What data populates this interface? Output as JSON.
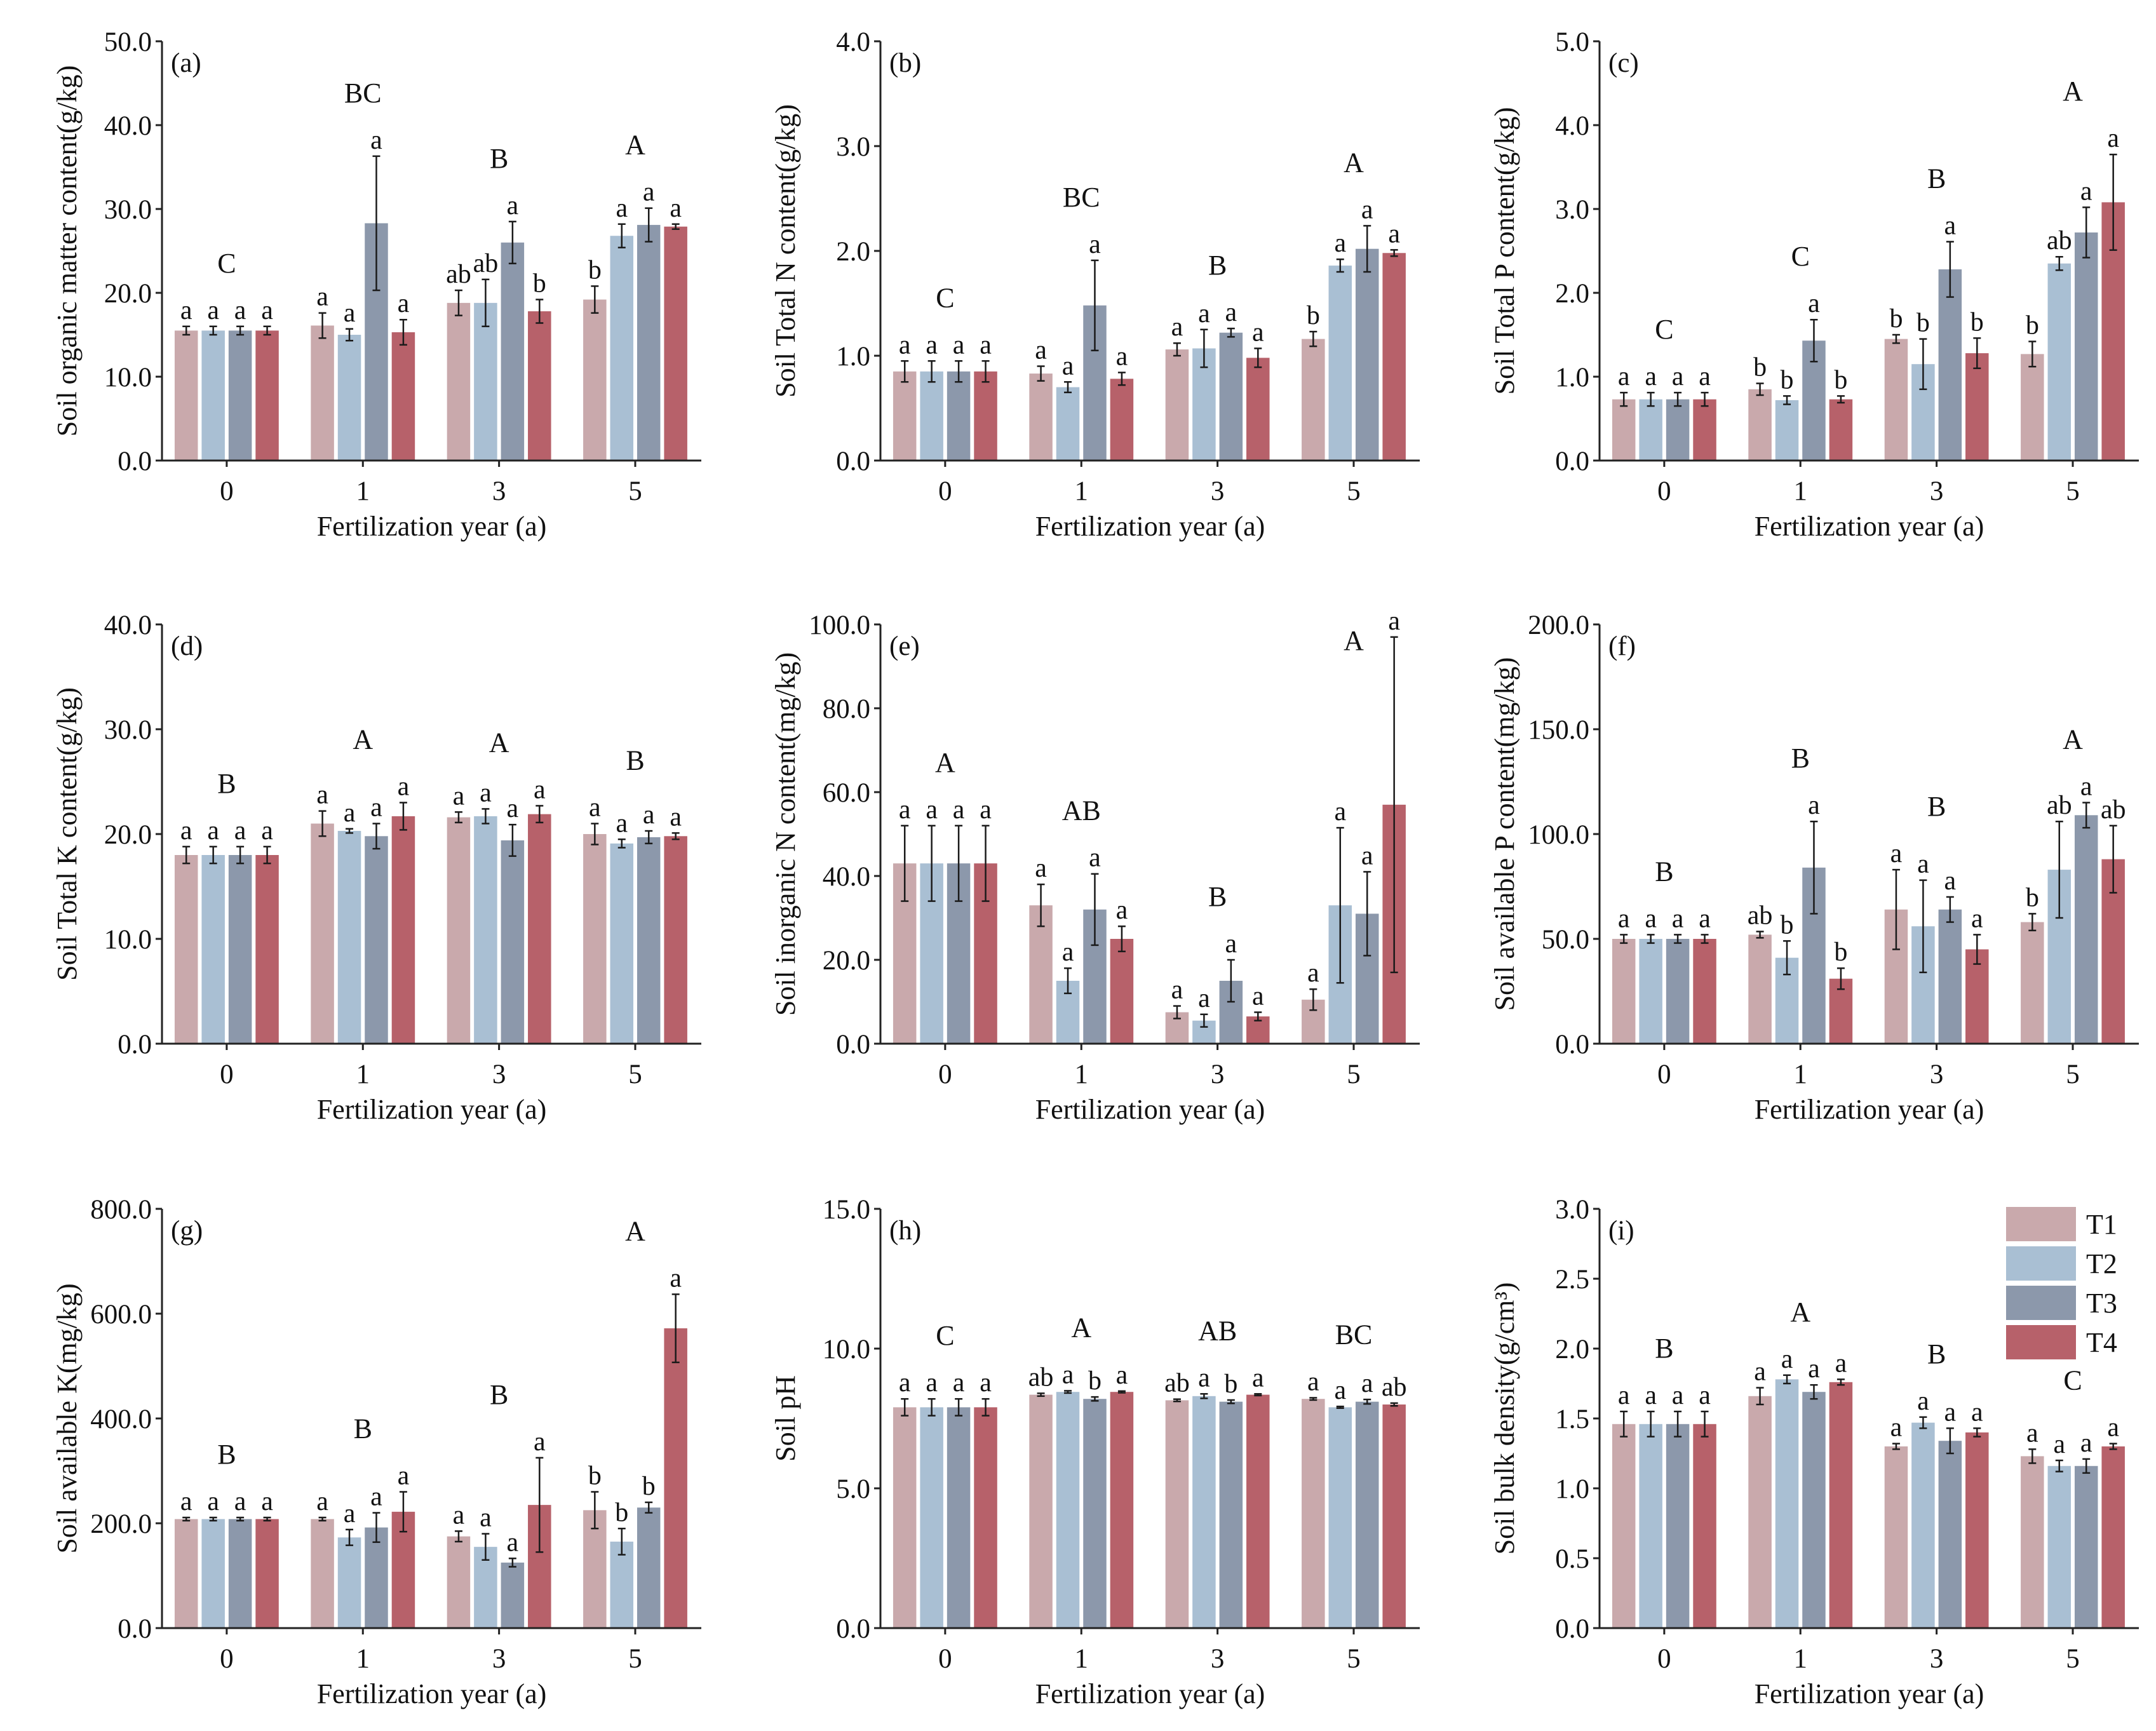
{
  "colors": {
    "T1": "#c9a9ac",
    "T2": "#a9bfd3",
    "T3": "#8c98ab",
    "T4": "#b7616a",
    "axis": "#222222",
    "error": "#1a1a1a"
  },
  "chart_data": [
    {
      "type": "bar",
      "panel": "(a)",
      "ylabel": "Soil organic matter content(g/kg)",
      "xlabel": "Fertilization year (a)",
      "ylim": [
        0,
        50
      ],
      "yticks": [
        "0.0",
        "10.0",
        "20.0",
        "30.0",
        "40.0",
        "50.0"
      ],
      "ystep": 10,
      "categories": [
        "0",
        "1",
        "3",
        "5"
      ],
      "group_letters": [
        "C",
        "BC",
        "B",
        "A"
      ],
      "series": [
        {
          "name": "T1",
          "values": [
            15.5,
            16.1,
            18.8,
            19.2
          ],
          "errors": [
            0.5,
            1.5,
            1.5,
            1.6
          ],
          "letters": [
            "a",
            "a",
            "ab",
            "b"
          ]
        },
        {
          "name": "T2",
          "values": [
            15.5,
            15.0,
            18.8,
            26.8
          ],
          "errors": [
            0.5,
            0.7,
            2.8,
            1.4
          ],
          "letters": [
            "a",
            "a",
            "ab",
            "a"
          ]
        },
        {
          "name": "T3",
          "values": [
            15.5,
            28.3,
            26.0,
            28.1
          ],
          "errors": [
            0.5,
            8.0,
            2.5,
            2.0
          ],
          "letters": [
            "a",
            "a",
            "a",
            "a"
          ]
        },
        {
          "name": "T4",
          "values": [
            15.5,
            15.3,
            17.8,
            27.9
          ],
          "errors": [
            0.5,
            1.5,
            1.4,
            0.3
          ],
          "letters": [
            "a",
            "a",
            "b",
            "a"
          ]
        }
      ]
    },
    {
      "type": "bar",
      "panel": "(b)",
      "ylabel": "Soil Total N content(g/kg)",
      "xlabel": "Fertilization year (a)",
      "ylim": [
        0,
        4
      ],
      "yticks": [
        "0.0",
        "1.0",
        "2.0",
        "3.0",
        "4.0"
      ],
      "ystep": 1,
      "categories": [
        "0",
        "1",
        "3",
        "5"
      ],
      "group_letters": [
        "C",
        "BC",
        "B",
        "A"
      ],
      "series": [
        {
          "name": "T1",
          "values": [
            0.85,
            0.83,
            1.06,
            1.16
          ],
          "errors": [
            0.1,
            0.07,
            0.06,
            0.07
          ],
          "letters": [
            "a",
            "a",
            "a",
            "b"
          ]
        },
        {
          "name": "T2",
          "values": [
            0.85,
            0.7,
            1.07,
            1.86
          ],
          "errors": [
            0.1,
            0.05,
            0.18,
            0.06
          ],
          "letters": [
            "a",
            "a",
            "a",
            "a"
          ]
        },
        {
          "name": "T3",
          "values": [
            0.85,
            1.48,
            1.22,
            2.02
          ],
          "errors": [
            0.1,
            0.43,
            0.04,
            0.22
          ],
          "letters": [
            "a",
            "a",
            "a",
            "a"
          ]
        },
        {
          "name": "T4",
          "values": [
            0.85,
            0.78,
            0.98,
            1.98
          ],
          "errors": [
            0.1,
            0.06,
            0.09,
            0.03
          ],
          "letters": [
            "a",
            "a",
            "a",
            "a"
          ]
        }
      ]
    },
    {
      "type": "bar",
      "panel": "(c)",
      "ylabel": "Soil Total P content(g/kg)",
      "xlabel": "Fertilization year (a)",
      "ylim": [
        0,
        5
      ],
      "yticks": [
        "0.0",
        "1.0",
        "2.0",
        "3.0",
        "4.0",
        "5.0"
      ],
      "ystep": 1,
      "categories": [
        "0",
        "1",
        "3",
        "5"
      ],
      "group_letters": [
        "C",
        "C",
        "B",
        "A"
      ],
      "series": [
        {
          "name": "T1",
          "values": [
            0.73,
            0.85,
            1.45,
            1.27
          ],
          "errors": [
            0.08,
            0.07,
            0.05,
            0.15
          ],
          "letters": [
            "a",
            "b",
            "b",
            "b"
          ]
        },
        {
          "name": "T2",
          "values": [
            0.73,
            0.72,
            1.15,
            2.35
          ],
          "errors": [
            0.08,
            0.05,
            0.3,
            0.08
          ],
          "letters": [
            "a",
            "b",
            "b",
            "ab"
          ]
        },
        {
          "name": "T3",
          "values": [
            0.73,
            1.43,
            2.28,
            2.72
          ],
          "errors": [
            0.08,
            0.25,
            0.33,
            0.3
          ],
          "letters": [
            "a",
            "a",
            "a",
            "a"
          ]
        },
        {
          "name": "T4",
          "values": [
            0.73,
            0.73,
            1.28,
            3.08
          ],
          "errors": [
            0.08,
            0.04,
            0.18,
            0.57
          ],
          "letters": [
            "a",
            "b",
            "b",
            "a"
          ]
        }
      ]
    },
    {
      "type": "bar",
      "panel": "(d)",
      "ylabel": "Soil Total K content(g/kg)",
      "xlabel": "Fertilization year (a)",
      "ylim": [
        0,
        40
      ],
      "yticks": [
        "0.0",
        "10.0",
        "20.0",
        "30.0",
        "40.0"
      ],
      "ystep": 10,
      "categories": [
        "0",
        "1",
        "3",
        "5"
      ],
      "group_letters": [
        "B",
        "A",
        "A",
        "B"
      ],
      "series": [
        {
          "name": "T1",
          "values": [
            18.0,
            21.0,
            21.6,
            20.0
          ],
          "errors": [
            0.8,
            1.2,
            0.5,
            1.0
          ],
          "letters": [
            "a",
            "a",
            "a",
            "a"
          ]
        },
        {
          "name": "T2",
          "values": [
            18.0,
            20.3,
            21.7,
            19.1
          ],
          "errors": [
            0.8,
            0.2,
            0.7,
            0.4
          ],
          "letters": [
            "a",
            "a",
            "a",
            "a"
          ]
        },
        {
          "name": "T3",
          "values": [
            18.0,
            19.8,
            19.4,
            19.7
          ],
          "errors": [
            0.8,
            1.2,
            1.5,
            0.6
          ],
          "letters": [
            "a",
            "a",
            "a",
            "a"
          ]
        },
        {
          "name": "T4",
          "values": [
            18.0,
            21.7,
            21.9,
            19.8
          ],
          "errors": [
            0.8,
            1.3,
            0.8,
            0.3
          ],
          "letters": [
            "a",
            "a",
            "a",
            "a"
          ]
        }
      ]
    },
    {
      "type": "bar",
      "panel": "(e)",
      "ylabel": "Soil inorganic N content(mg/kg)",
      "xlabel": "Fertilization year (a)",
      "ylim": [
        0,
        100
      ],
      "yticks": [
        "0.0",
        "20.0",
        "40.0",
        "60.0",
        "80.0",
        "100.0"
      ],
      "ystep": 20,
      "categories": [
        "0",
        "1",
        "3",
        "5"
      ],
      "group_letters": [
        "A",
        "AB",
        "B",
        "A"
      ],
      "series": [
        {
          "name": "T1",
          "values": [
            43,
            33,
            7.5,
            10.5
          ],
          "errors": [
            9,
            5,
            1.5,
            2.5
          ],
          "letters": [
            "a",
            "a",
            "a",
            "a"
          ]
        },
        {
          "name": "T2",
          "values": [
            43,
            15,
            5.5,
            33
          ],
          "errors": [
            9,
            3,
            1.5,
            18.5
          ],
          "letters": [
            "a",
            "a",
            "a",
            "a"
          ]
        },
        {
          "name": "T3",
          "values": [
            43,
            32,
            15,
            31
          ],
          "errors": [
            9,
            8.5,
            5,
            10
          ],
          "letters": [
            "a",
            "a",
            "a",
            "a"
          ]
        },
        {
          "name": "T4",
          "values": [
            43,
            25,
            6.5,
            57
          ],
          "errors": [
            9,
            3,
            1,
            40
          ],
          "letters": [
            "a",
            "a",
            "a",
            "a"
          ]
        }
      ]
    },
    {
      "type": "bar",
      "panel": "(f)",
      "ylabel": "Soil available P content(mg/kg)",
      "xlabel": "Fertilization year (a)",
      "ylim": [
        0,
        200
      ],
      "yticks": [
        "0.0",
        "50.0",
        "100.0",
        "150.0",
        "200.0"
      ],
      "ystep": 50,
      "categories": [
        "0",
        "1",
        "3",
        "5"
      ],
      "group_letters": [
        "B",
        "B",
        "B",
        "A"
      ],
      "series": [
        {
          "name": "T1",
          "values": [
            50,
            52,
            64,
            58
          ],
          "errors": [
            2,
            1.5,
            19,
            4
          ],
          "letters": [
            "a",
            "ab",
            "a",
            "b"
          ]
        },
        {
          "name": "T2",
          "values": [
            50,
            41,
            56,
            83
          ],
          "errors": [
            2,
            8,
            22,
            23
          ],
          "letters": [
            "a",
            "b",
            "a",
            "ab"
          ]
        },
        {
          "name": "T3",
          "values": [
            50,
            84,
            64,
            109
          ],
          "errors": [
            2,
            22,
            6,
            6
          ],
          "letters": [
            "a",
            "a",
            "a",
            "a"
          ]
        },
        {
          "name": "T4",
          "values": [
            50,
            31,
            45,
            88
          ],
          "errors": [
            2,
            5,
            7,
            16
          ],
          "letters": [
            "a",
            "b",
            "a",
            "ab"
          ]
        }
      ]
    },
    {
      "type": "bar",
      "panel": "(g)",
      "ylabel": "Soil available K(mg/kg)",
      "xlabel": "Fertilization year (a)",
      "ylim": [
        0,
        800
      ],
      "yticks": [
        "0.0",
        "200.0",
        "400.0",
        "600.0",
        "800.0"
      ],
      "ystep": 200,
      "categories": [
        "0",
        "1",
        "3",
        "5"
      ],
      "group_letters": [
        "B",
        "B",
        "B",
        "A"
      ],
      "series": [
        {
          "name": "T1",
          "values": [
            208,
            208,
            175,
            225
          ],
          "errors": [
            3,
            3,
            10,
            35
          ],
          "letters": [
            "a",
            "a",
            "a",
            "b"
          ]
        },
        {
          "name": "T2",
          "values": [
            208,
            173,
            155,
            165
          ],
          "errors": [
            3,
            15,
            25,
            25
          ],
          "letters": [
            "a",
            "a",
            "a",
            "b"
          ]
        },
        {
          "name": "T3",
          "values": [
            208,
            192,
            125,
            230
          ],
          "errors": [
            3,
            28,
            8,
            10
          ],
          "letters": [
            "a",
            "a",
            "a",
            "b"
          ]
        },
        {
          "name": "T4",
          "values": [
            208,
            222,
            235,
            572
          ],
          "errors": [
            3,
            38,
            90,
            65
          ],
          "letters": [
            "a",
            "a",
            "a",
            "a"
          ]
        }
      ]
    },
    {
      "type": "bar",
      "panel": "(h)",
      "ylabel": "Soil pH",
      "xlabel": "Fertilization year (a)",
      "ylim": [
        0,
        15
      ],
      "yticks": [
        "0.0",
        "5.0",
        "10.0",
        "15.0"
      ],
      "ystep": 5,
      "categories": [
        "0",
        "1",
        "3",
        "5"
      ],
      "group_letters": [
        "C",
        "A",
        "AB",
        "BC"
      ],
      "series": [
        {
          "name": "T1",
          "values": [
            7.9,
            8.35,
            8.15,
            8.2
          ],
          "errors": [
            0.3,
            0.05,
            0.04,
            0.04
          ],
          "letters": [
            "a",
            "ab",
            "ab",
            "a"
          ]
        },
        {
          "name": "T2",
          "values": [
            7.9,
            8.45,
            8.3,
            7.9
          ],
          "errors": [
            0.3,
            0.04,
            0.08,
            0.03
          ],
          "letters": [
            "a",
            "a",
            "a",
            "a"
          ]
        },
        {
          "name": "T3",
          "values": [
            7.9,
            8.2,
            8.1,
            8.1
          ],
          "errors": [
            0.3,
            0.07,
            0.06,
            0.08
          ],
          "letters": [
            "a",
            "b",
            "b",
            "a"
          ]
        },
        {
          "name": "T4",
          "values": [
            7.9,
            8.45,
            8.35,
            8.0
          ],
          "errors": [
            0.3,
            0.03,
            0.03,
            0.05
          ],
          "letters": [
            "a",
            "a",
            "a",
            "ab"
          ]
        }
      ]
    },
    {
      "type": "bar",
      "panel": "(i)",
      "ylabel": "Soil bulk density(g/cm³)",
      "xlabel": "Fertilization year (a)",
      "ylim": [
        0,
        3
      ],
      "yticks": [
        "0.0",
        "0.5",
        "1.0",
        "1.5",
        "2.0",
        "2.5",
        "3.0"
      ],
      "ystep": 0.5,
      "categories": [
        "0",
        "1",
        "3",
        "5"
      ],
      "group_letters": [
        "B",
        "A",
        "B",
        "C"
      ],
      "legend": [
        "T1",
        "T2",
        "T3",
        "T4"
      ],
      "legend_position": "top-right",
      "series": [
        {
          "name": "T1",
          "values": [
            1.46,
            1.66,
            1.3,
            1.23
          ],
          "errors": [
            0.09,
            0.06,
            0.02,
            0.05
          ],
          "letters": [
            "a",
            "a",
            "a",
            "a"
          ]
        },
        {
          "name": "T2",
          "values": [
            1.46,
            1.78,
            1.47,
            1.16
          ],
          "errors": [
            0.09,
            0.03,
            0.04,
            0.04
          ],
          "letters": [
            "a",
            "a",
            "a",
            "a"
          ]
        },
        {
          "name": "T3",
          "values": [
            1.46,
            1.69,
            1.34,
            1.16
          ],
          "errors": [
            0.09,
            0.05,
            0.09,
            0.05
          ],
          "letters": [
            "a",
            "a",
            "a",
            "a"
          ]
        },
        {
          "name": "T4",
          "values": [
            1.46,
            1.76,
            1.4,
            1.3
          ],
          "errors": [
            0.09,
            0.02,
            0.03,
            0.02
          ],
          "letters": [
            "a",
            "a",
            "a",
            "a"
          ]
        }
      ]
    }
  ]
}
